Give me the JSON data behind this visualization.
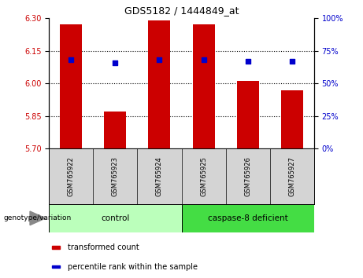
{
  "title": "GDS5182 / 1444849_at",
  "samples": [
    "GSM765922",
    "GSM765923",
    "GSM765924",
    "GSM765925",
    "GSM765926",
    "GSM765927"
  ],
  "bar_values": [
    6.27,
    5.87,
    6.29,
    6.27,
    6.01,
    5.97
  ],
  "dot_values_left": [
    6.108,
    6.095,
    6.108,
    6.108,
    6.1,
    6.1
  ],
  "ylim_left": [
    5.7,
    6.3
  ],
  "ylim_right": [
    0,
    100
  ],
  "yticks_left": [
    5.7,
    5.85,
    6.0,
    6.15,
    6.3
  ],
  "yticks_right": [
    0,
    25,
    50,
    75,
    100
  ],
  "bar_color": "#cc0000",
  "dot_color": "#0000cc",
  "bar_width": 0.5,
  "groups": [
    {
      "label": "control",
      "indices": [
        0,
        1,
        2
      ],
      "color": "#bbffbb"
    },
    {
      "label": "caspase-8 deficient",
      "indices": [
        3,
        4,
        5
      ],
      "color": "#44dd44"
    }
  ],
  "group_label": "genotype/variation",
  "legend_items": [
    {
      "label": "transformed count",
      "color": "#cc0000"
    },
    {
      "label": "percentile rank within the sample",
      "color": "#0000cc"
    }
  ],
  "grid_color": "black",
  "sample_box_color": "#d4d4d4",
  "right_axis_label_color": "#0000cc",
  "left_axis_label_color": "#cc0000"
}
